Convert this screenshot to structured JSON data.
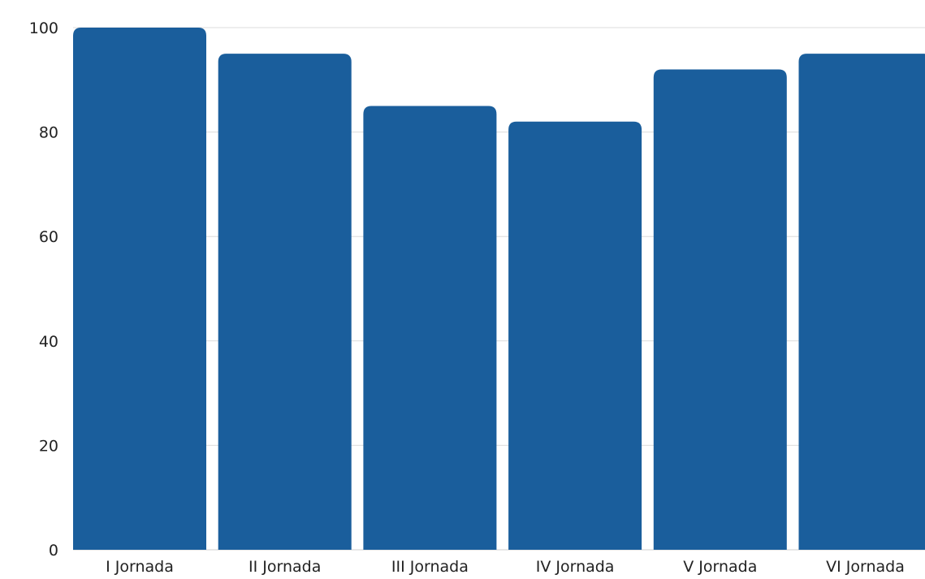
{
  "chart_data": {
    "type": "bar",
    "categories": [
      "I Jornada",
      "II Jornada",
      "III Jornada",
      "IV Jornada",
      "V Jornada",
      "VI Jornada"
    ],
    "values": [
      100,
      95,
      85,
      82,
      92,
      95
    ],
    "ylim": [
      0,
      100
    ],
    "yticks": [
      "0",
      "20",
      "40",
      "60",
      "80",
      "100"
    ],
    "bar_color": "#1a5e9c",
    "grid": true,
    "title": "",
    "xlabel": "",
    "ylabel": ""
  }
}
